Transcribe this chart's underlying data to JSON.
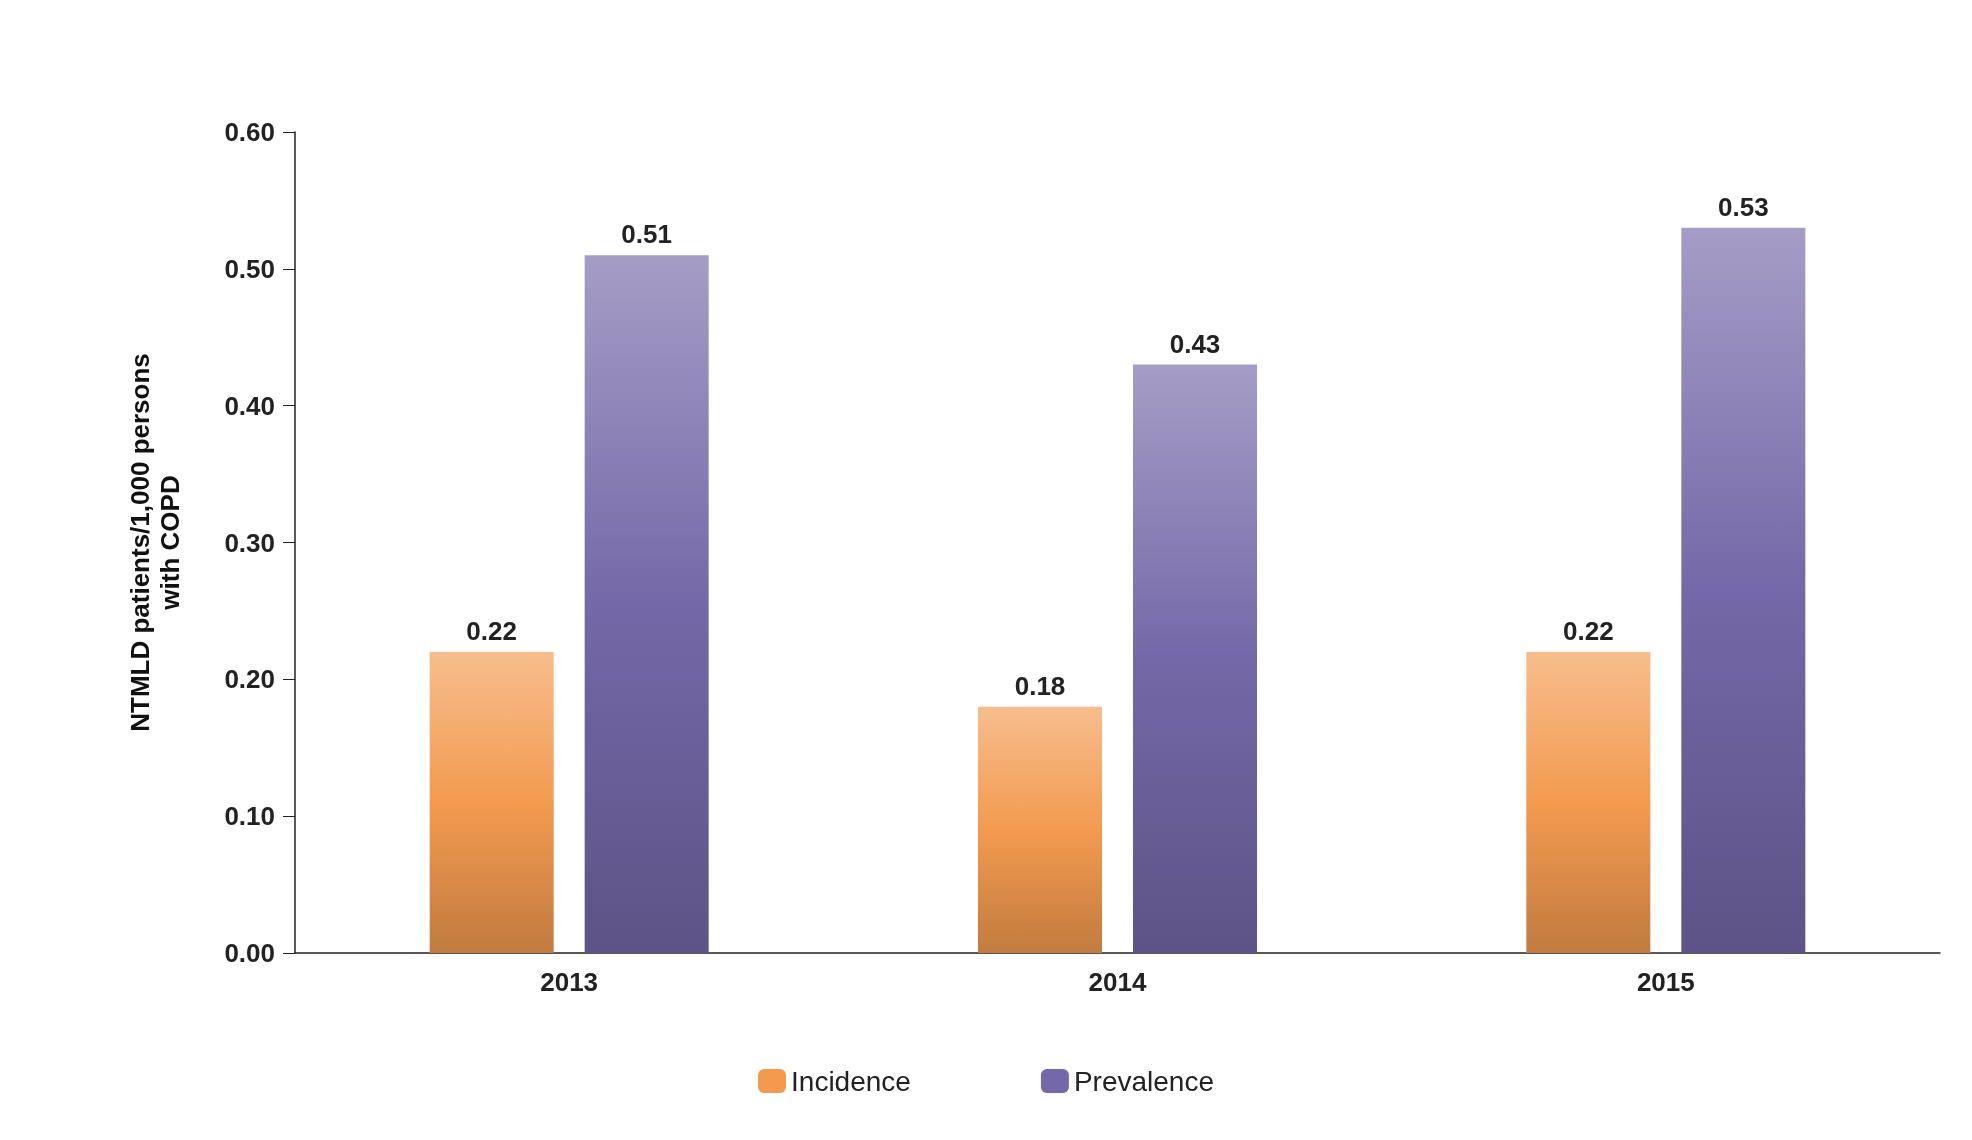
{
  "chart_data": {
    "type": "bar",
    "ylabel": "NTMLD patients/1,000 persons\nwith COPD",
    "categories": [
      "2013",
      "2014",
      "2015"
    ],
    "series": [
      {
        "name": "Incidence",
        "color": "#f39a4f",
        "values": [
          0.22,
          0.18,
          0.22
        ]
      },
      {
        "name": "Prevalence",
        "color": "#7468a8",
        "values": [
          0.51,
          0.43,
          0.53
        ]
      }
    ],
    "ylim": [
      0,
      0.6
    ],
    "yticks": [
      {
        "value": 0,
        "label": "0.00"
      },
      {
        "value": 0.1,
        "label": "0.10"
      },
      {
        "value": 0.2,
        "label": "0.20"
      },
      {
        "value": 0.3,
        "label": "0.30"
      },
      {
        "value": 0.4,
        "label": "0.40"
      },
      {
        "value": 0.5,
        "label": "0.50"
      },
      {
        "value": 0.6,
        "label": "0.60"
      }
    ],
    "data_labels": true,
    "grid": false,
    "legend": "bottom"
  }
}
